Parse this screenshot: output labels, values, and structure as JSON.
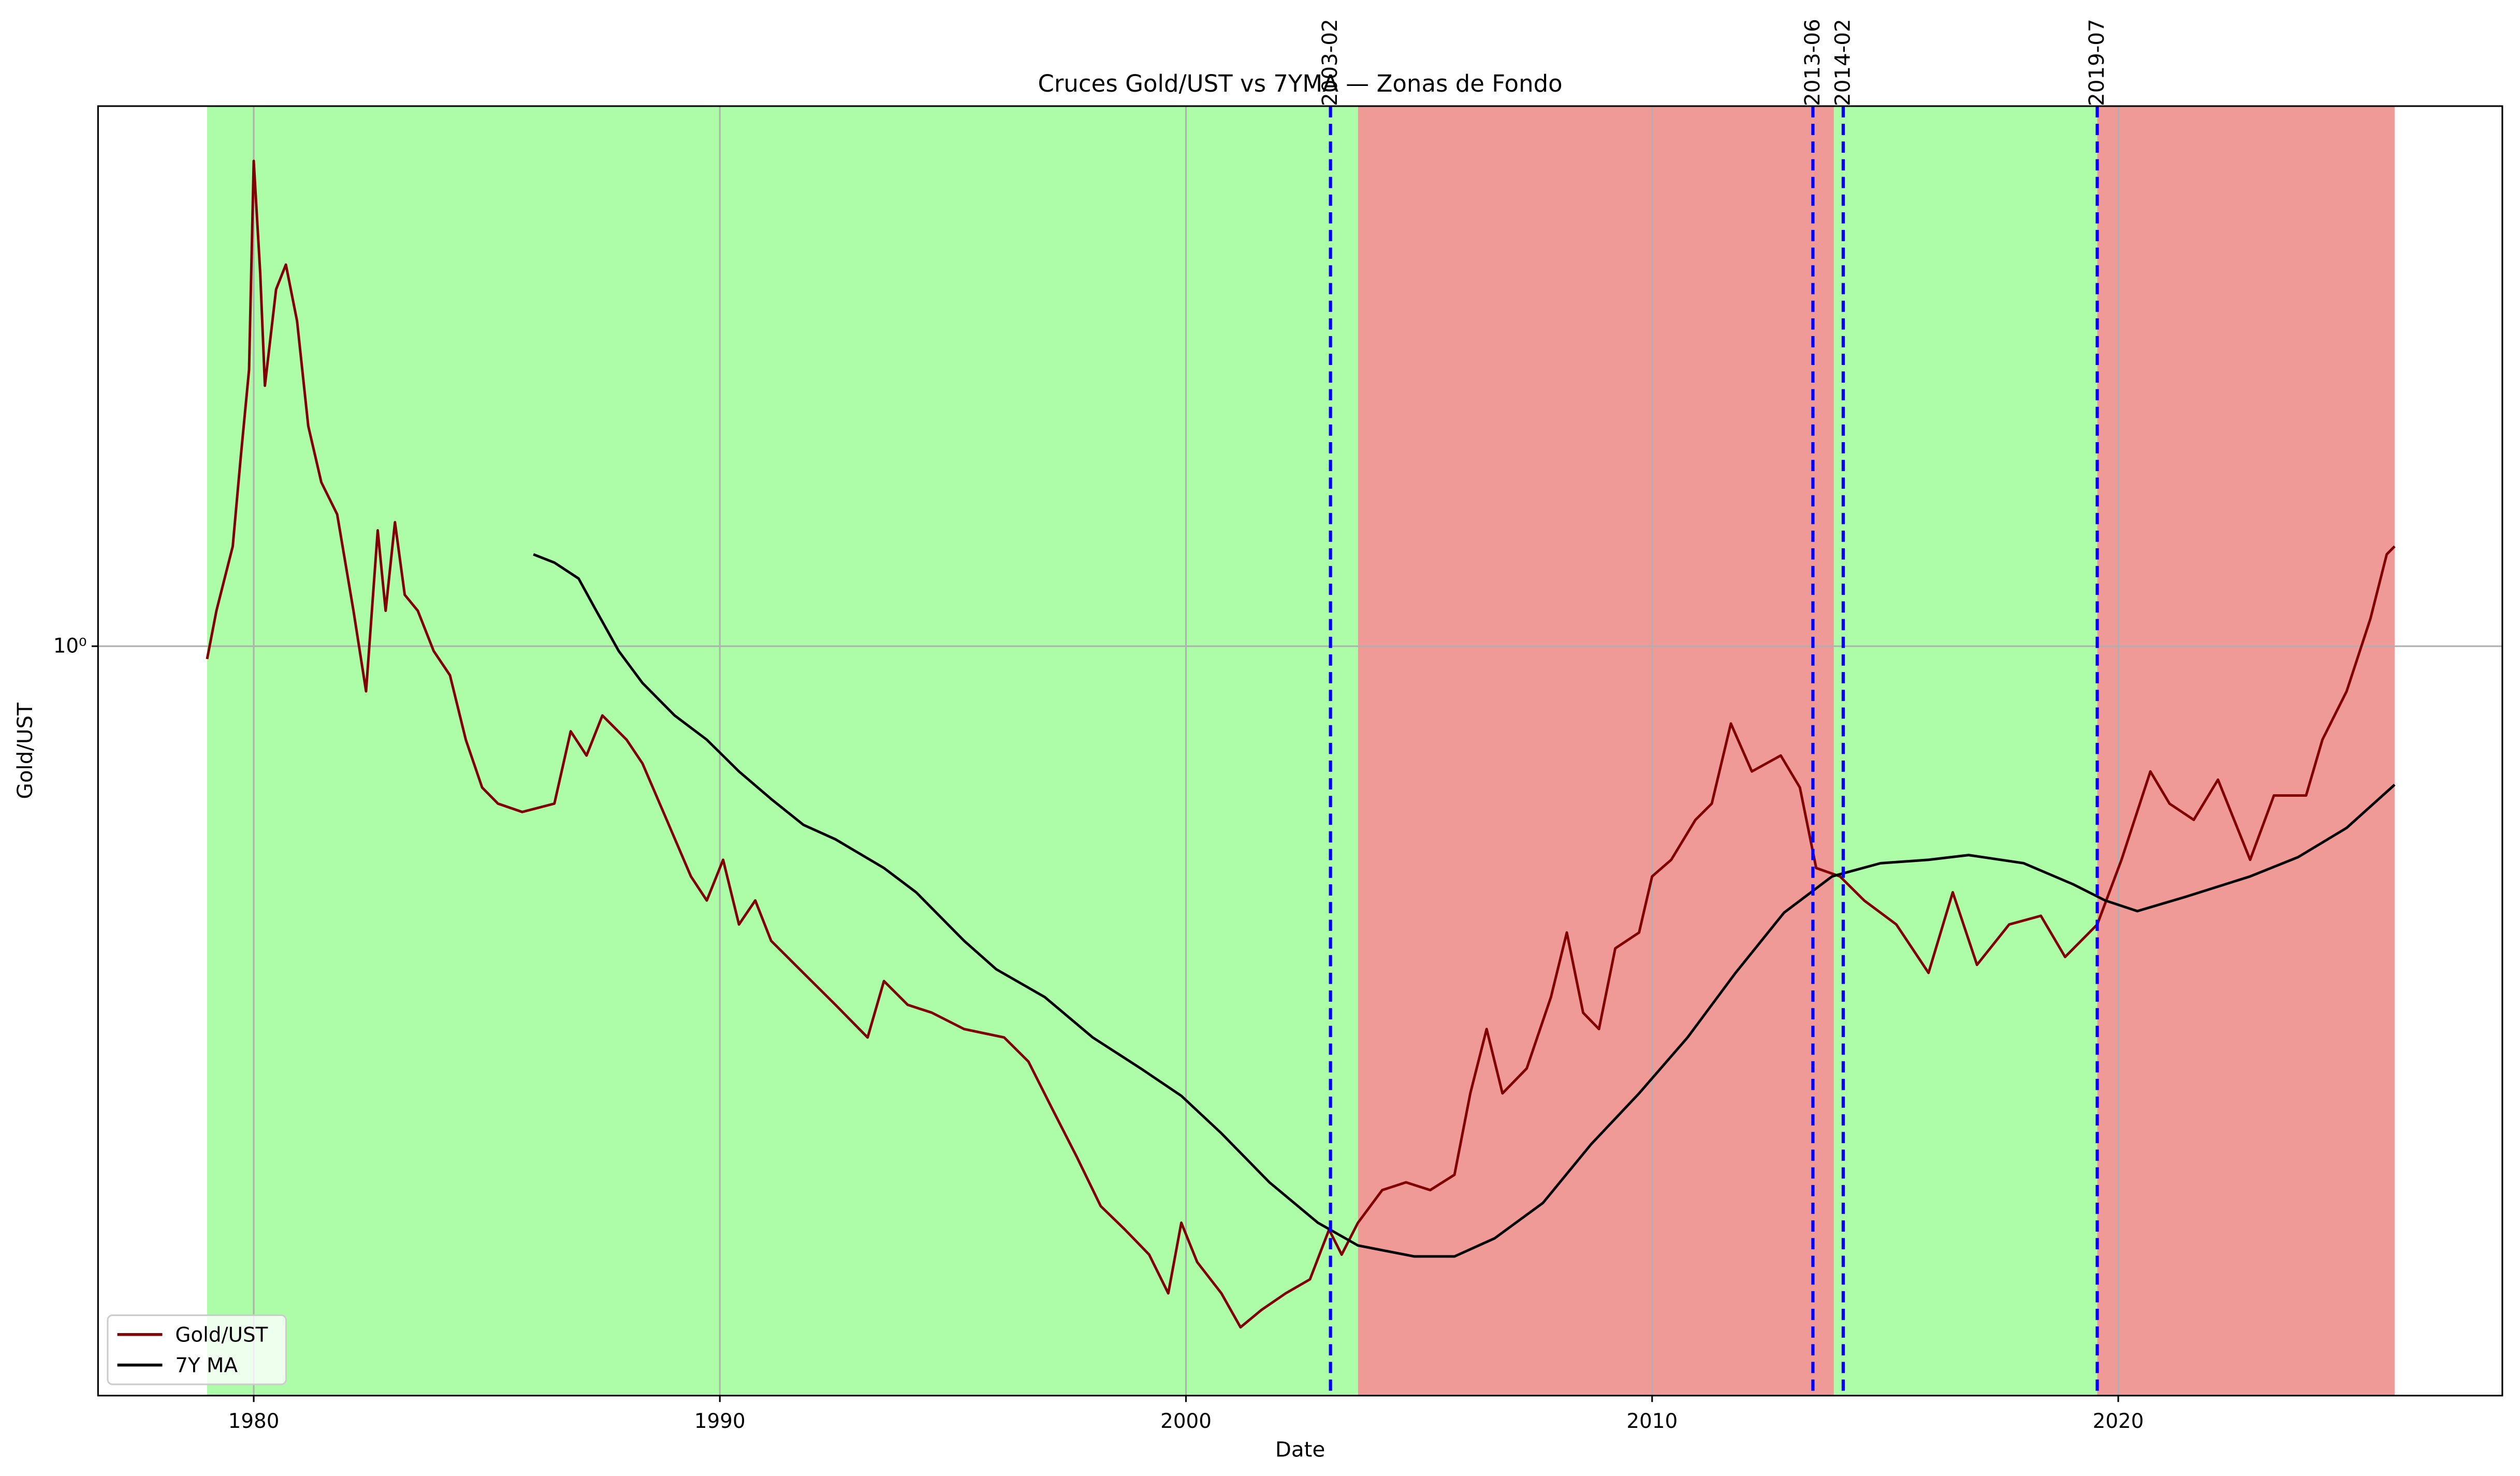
{
  "chart_data": {
    "type": "line",
    "title": "Cruces Gold/UST vs 7YMA — Zonas de Fondo",
    "xlabel": "Date",
    "ylabel": "Gold/UST",
    "log_y": true,
    "grid": true,
    "legend": "lower left",
    "xlim": [
      1976.66,
      2028.24
    ],
    "ylim": [
      0.1497,
      3.93
    ],
    "xticks": [
      1980,
      1990,
      2000,
      2010,
      2020
    ],
    "yticks": [
      {
        "value": 1,
        "label": "10⁰"
      }
    ],
    "zones": [
      {
        "start": 1979.0,
        "end": 2003.69,
        "color": "#adfca8"
      },
      {
        "start": 2003.69,
        "end": 2013.9,
        "color": "#f09a98"
      },
      {
        "start": 2013.9,
        "end": 2019.55,
        "color": "#adfca8"
      },
      {
        "start": 2019.55,
        "end": 2025.93,
        "color": "#f09a98"
      }
    ],
    "crossovers": [
      {
        "value": 2003.1,
        "label": "2003-02"
      },
      {
        "value": 2013.45,
        "label": "2013-06"
      },
      {
        "value": 2014.1,
        "label": "2014-02"
      },
      {
        "value": 2019.55,
        "label": "2019-07"
      }
    ],
    "crossover_color": "#0000ff",
    "series": [
      {
        "name": "Gold/UST",
        "color": "#800000",
        "x": [
          1979.0,
          1979.2,
          1979.55,
          1979.72,
          1979.9,
          1980.0,
          1980.14,
          1980.24,
          1980.48,
          1980.69,
          1980.93,
          1981.17,
          1981.45,
          1981.79,
          1982.14,
          1982.41,
          1982.66,
          1982.83,
          1983.03,
          1983.24,
          1983.52,
          1983.86,
          1984.21,
          1984.55,
          1984.9,
          1985.24,
          1985.76,
          1986.45,
          1986.8,
          1987.14,
          1987.48,
          1988.0,
          1988.34,
          1988.86,
          1989.38,
          1989.72,
          1990.07,
          1990.41,
          1990.76,
          1991.1,
          1991.79,
          1992.48,
          1993.17,
          1993.52,
          1994.03,
          1994.55,
          1995.24,
          1996.1,
          1996.62,
          1997.14,
          1997.66,
          1998.17,
          1998.69,
          1999.21,
          1999.62,
          1999.9,
          2000.24,
          2000.76,
          2001.17,
          2001.62,
          2002.14,
          2002.66,
          2003.07,
          2003.34,
          2003.69,
          2004.21,
          2004.72,
          2005.24,
          2005.76,
          2006.1,
          2006.45,
          2006.79,
          2007.31,
          2007.83,
          2008.17,
          2008.52,
          2008.86,
          2009.21,
          2009.72,
          2010.0,
          2010.41,
          2010.93,
          2011.28,
          2011.69,
          2012.14,
          2012.76,
          2013.17,
          2013.52,
          2014.03,
          2014.55,
          2015.24,
          2015.93,
          2016.45,
          2016.97,
          2017.66,
          2018.34,
          2018.86,
          2019.55,
          2020.07,
          2020.69,
          2021.1,
          2021.62,
          2022.14,
          2022.83,
          2023.34,
          2024.03,
          2024.38,
          2024.9,
          2025.41,
          2025.76,
          2025.93
        ],
        "values": [
          0.968,
          1.094,
          1.288,
          1.611,
          2.015,
          3.42,
          2.57,
          1.935,
          2.47,
          2.63,
          2.28,
          1.747,
          1.515,
          1.397,
          1.094,
          0.892,
          1.341,
          1.094,
          1.369,
          1.139,
          1.094,
          0.988,
          0.929,
          0.789,
          0.699,
          0.671,
          0.657,
          0.671,
          0.806,
          0.758,
          0.839,
          0.789,
          0.743,
          0.644,
          0.558,
          0.525,
          0.582,
          0.494,
          0.525,
          0.474,
          0.437,
          0.403,
          0.371,
          0.428,
          0.403,
          0.395,
          0.379,
          0.371,
          0.349,
          0.309,
          0.274,
          0.242,
          0.228,
          0.214,
          0.194,
          0.232,
          0.21,
          0.194,
          0.178,
          0.186,
          0.194,
          0.201,
          0.228,
          0.214,
          0.232,
          0.252,
          0.257,
          0.252,
          0.262,
          0.322,
          0.379,
          0.322,
          0.343,
          0.411,
          0.484,
          0.395,
          0.379,
          0.465,
          0.484,
          0.558,
          0.582,
          0.644,
          0.671,
          0.822,
          0.728,
          0.758,
          0.699,
          0.57,
          0.558,
          0.525,
          0.494,
          0.437,
          0.536,
          0.446,
          0.494,
          0.505,
          0.455,
          0.494,
          0.582,
          0.728,
          0.671,
          0.644,
          0.713,
          0.582,
          0.685,
          0.685,
          0.789,
          0.892,
          1.072,
          1.262,
          1.288
        ]
      },
      {
        "name": "7Y MA",
        "color": "#000000",
        "x": [
          1986.0,
          1986.45,
          1986.97,
          1987.31,
          1987.83,
          1988.34,
          1989.03,
          1989.72,
          1990.41,
          1991.1,
          1991.79,
          1992.48,
          1993.52,
          1994.21,
          1995.24,
          1995.93,
          1996.97,
          1998.0,
          1999.03,
          1999.9,
          2000.76,
          2001.79,
          2002.83,
          2003.69,
          2004.9,
          2005.76,
          2006.62,
          2007.66,
          2008.69,
          2009.72,
          2010.76,
          2011.79,
          2012.83,
          2013.86,
          2014.9,
          2015.93,
          2016.79,
          2017.97,
          2019.03,
          2019.72,
          2020.41,
          2021.45,
          2022.83,
          2023.86,
          2024.9,
          2025.93
        ],
        "values": [
          1.262,
          1.236,
          1.187,
          1.103,
          0.988,
          0.911,
          0.839,
          0.789,
          0.728,
          0.679,
          0.636,
          0.613,
          0.57,
          0.536,
          0.474,
          0.441,
          0.411,
          0.371,
          0.343,
          0.32,
          0.291,
          0.257,
          0.232,
          0.219,
          0.213,
          0.213,
          0.223,
          0.244,
          0.283,
          0.322,
          0.371,
          0.437,
          0.509,
          0.558,
          0.577,
          0.582,
          0.589,
          0.577,
          0.547,
          0.525,
          0.511,
          0.53,
          0.558,
          0.586,
          0.631,
          0.704
        ]
      }
    ]
  }
}
